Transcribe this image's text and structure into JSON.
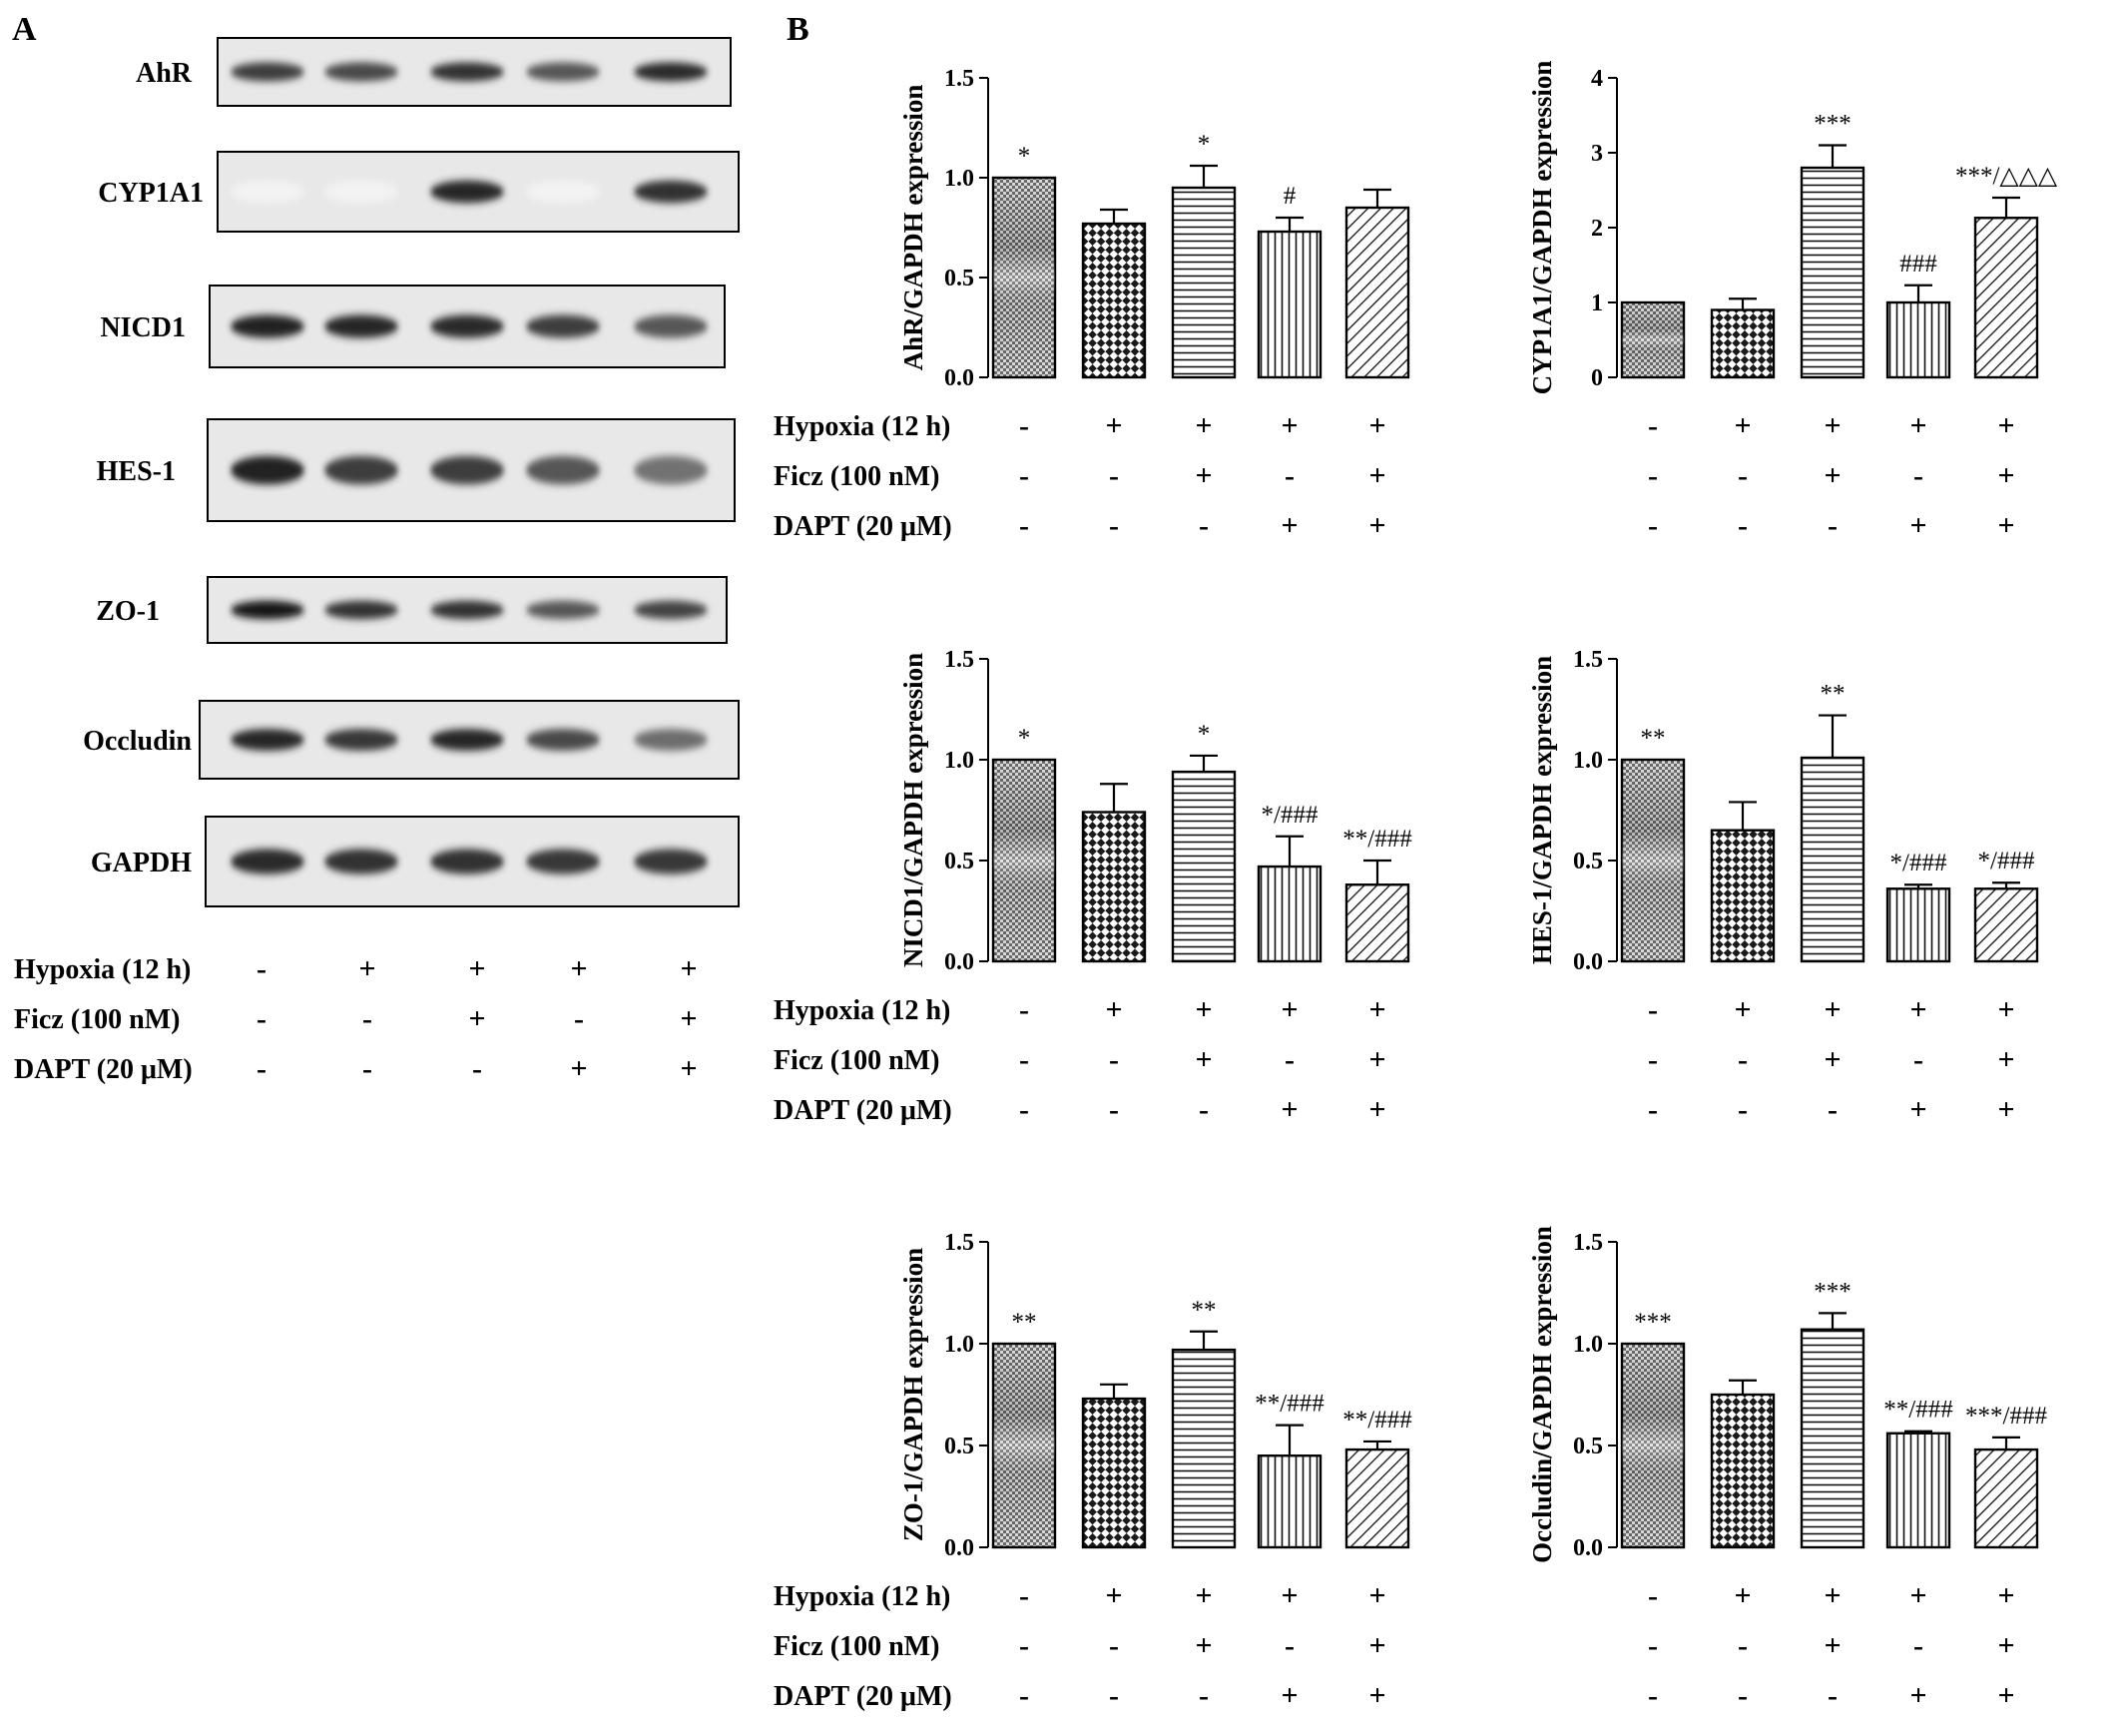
{
  "panel_labels": {
    "a": "A",
    "b": "B"
  },
  "blot": {
    "proteins": [
      "AhR",
      "CYP1A1",
      "NICD1",
      "HES-1",
      "ZO-1",
      "Occludin",
      "GAPDH"
    ],
    "band_intensity": [
      [
        0.82,
        0.78,
        0.88,
        0.72,
        0.9
      ],
      [
        0.05,
        0.05,
        0.92,
        0.05,
        0.88
      ],
      [
        0.95,
        0.92,
        0.9,
        0.82,
        0.72
      ],
      [
        0.95,
        0.82,
        0.82,
        0.72,
        0.6
      ],
      [
        1.0,
        0.88,
        0.88,
        0.72,
        0.8
      ],
      [
        0.92,
        0.85,
        0.92,
        0.78,
        0.62
      ],
      [
        0.9,
        0.88,
        0.88,
        0.85,
        0.85
      ]
    ]
  },
  "conditions": {
    "rows": [
      {
        "label": "Hypoxia (12 h)",
        "marks": [
          "-",
          "+",
          "+",
          "+",
          "+"
        ]
      },
      {
        "label": "Ficz (100 nM)",
        "marks": [
          "-",
          "-",
          "+",
          "-",
          "+"
        ]
      },
      {
        "label": "DAPT (20 μM)",
        "marks": [
          "-",
          "-",
          "-",
          "+",
          "+"
        ]
      }
    ]
  },
  "chart_data": [
    {
      "type": "bar",
      "ylabel": "AhR/GAPDH expression",
      "ylim": [
        0,
        1.5
      ],
      "yticks": [
        "0.0",
        "0.5",
        "1.0",
        "1.5"
      ],
      "values": [
        1.0,
        0.77,
        0.95,
        0.73,
        0.85
      ],
      "errors": [
        0,
        0.07,
        0.11,
        0.07,
        0.09
      ],
      "annotations": [
        "*",
        "",
        "*",
        "#",
        ""
      ]
    },
    {
      "type": "bar",
      "ylabel": "CYP1A1/GAPDH expression",
      "ylim": [
        0,
        4
      ],
      "yticks": [
        "0",
        "1",
        "2",
        "3",
        "4"
      ],
      "values": [
        1.0,
        0.9,
        2.8,
        1.0,
        2.13
      ],
      "errors": [
        0,
        0.15,
        0.3,
        0.23,
        0.27
      ],
      "annotations": [
        "",
        "",
        "***",
        "###",
        "***/△△△"
      ]
    },
    {
      "type": "bar",
      "ylabel": "NICD1/GAPDH expression",
      "ylim": [
        0,
        1.5
      ],
      "yticks": [
        "0.0",
        "0.5",
        "1.0",
        "1.5"
      ],
      "values": [
        1.0,
        0.74,
        0.94,
        0.47,
        0.38
      ],
      "errors": [
        0,
        0.14,
        0.08,
        0.15,
        0.12
      ],
      "annotations": [
        "*",
        "",
        "*",
        "*/###",
        "**/###"
      ]
    },
    {
      "type": "bar",
      "ylabel": "HES-1/GAPDH expression",
      "ylim": [
        0,
        1.5
      ],
      "yticks": [
        "0.0",
        "0.5",
        "1.0",
        "1.5"
      ],
      "values": [
        1.0,
        0.65,
        1.01,
        0.36,
        0.36
      ],
      "errors": [
        0,
        0.14,
        0.21,
        0.02,
        0.03
      ],
      "annotations": [
        "**",
        "",
        "**",
        "*/###",
        "*/###"
      ]
    },
    {
      "type": "bar",
      "ylabel": "ZO-1/GAPDH expression",
      "ylim": [
        0,
        1.5
      ],
      "yticks": [
        "0.0",
        "0.5",
        "1.0",
        "1.5"
      ],
      "values": [
        1.0,
        0.73,
        0.97,
        0.45,
        0.48
      ],
      "errors": [
        0,
        0.07,
        0.09,
        0.15,
        0.04
      ],
      "annotations": [
        "**",
        "",
        "**",
        "**/###",
        "**/###"
      ]
    },
    {
      "type": "bar",
      "ylabel": "Occludin/GAPDH expression",
      "ylim": [
        0,
        1.5
      ],
      "yticks": [
        "0.0",
        "0.5",
        "1.0",
        "1.5"
      ],
      "values": [
        1.0,
        0.75,
        1.07,
        0.56,
        0.48
      ],
      "errors": [
        0,
        0.07,
        0.08,
        0.01,
        0.06
      ],
      "annotations": [
        "***",
        "",
        "***",
        "**/###",
        "***/###"
      ]
    }
  ]
}
